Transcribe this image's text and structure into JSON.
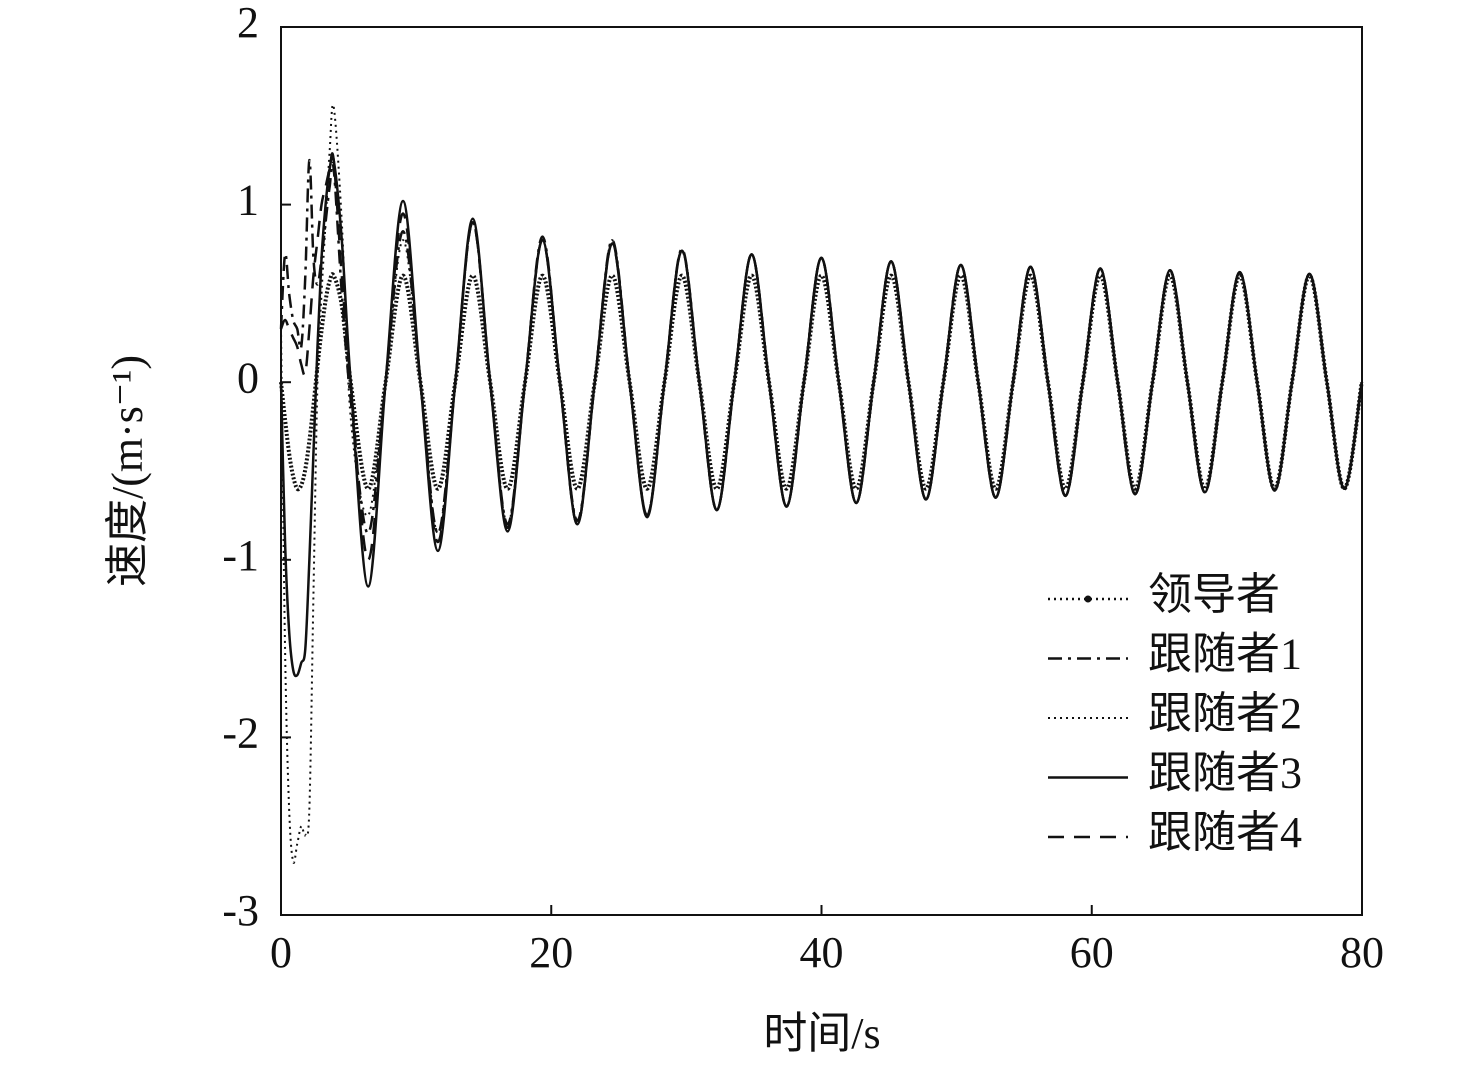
{
  "chart_data": {
    "type": "line",
    "xlabel": "时间/s",
    "ylabel": "速度/(m·s⁻¹)",
    "xlim": [
      0,
      80
    ],
    "ylim": [
      -3,
      2
    ],
    "xticks": [
      0,
      20,
      40,
      60,
      80
    ],
    "yticks": [
      -3,
      -2,
      -1,
      0,
      1,
      2
    ],
    "legend": "lower right",
    "smooth": true,
    "x": [
      0,
      0.3,
      0.6,
      0.9,
      1.2,
      1.5,
      1.8,
      2.1,
      2.4,
      2.7,
      3,
      3.3,
      3.6,
      3.9,
      4.5,
      5.16,
      6.45,
      7.74,
      9.03,
      10.32,
      11.61,
      12.9,
      14.19,
      15.48,
      16.77,
      18.06,
      19.35,
      20.64,
      21.93,
      23.22,
      24.51,
      25.8,
      27.09,
      28.38,
      29.67,
      30.96,
      32.25,
      33.54,
      34.83,
      36.12,
      37.41,
      38.7,
      39.99,
      41.28,
      42.57,
      43.86,
      45.15,
      46.44,
      47.73,
      49.02,
      50.31,
      51.6,
      52.89,
      54.18,
      55.47,
      56.76,
      58.05,
      59.34,
      60.63,
      61.92,
      63.21,
      64.5,
      65.79,
      67.08,
      68.37,
      69.66,
      70.95,
      72.24,
      73.53,
      74.82,
      76.11,
      77.4,
      78.69,
      79.98
    ],
    "series": [
      {
        "name": "领导者",
        "color": "#111111",
        "style": "dotmarker",
        "values": [
          0,
          -0.21,
          -0.4,
          -0.53,
          -0.6,
          -0.58,
          -0.49,
          -0.33,
          -0.13,
          0.09,
          0.29,
          0.46,
          0.57,
          0.6,
          0.43,
          0,
          -0.6,
          0,
          0.6,
          0,
          -0.6,
          0,
          0.6,
          0,
          -0.6,
          0,
          0.6,
          0,
          -0.6,
          0,
          0.6,
          0,
          -0.6,
          0,
          0.6,
          0,
          -0.6,
          0,
          0.6,
          0,
          -0.6,
          0,
          0.6,
          0,
          -0.6,
          0,
          0.6,
          0,
          -0.6,
          0,
          0.6,
          0,
          -0.6,
          0,
          0.6,
          0,
          -0.6,
          0,
          0.6,
          0,
          -0.6,
          0,
          0.6,
          0,
          -0.6,
          0,
          0.6,
          0,
          -0.6,
          0,
          0.6,
          0,
          -0.6,
          0
        ]
      },
      {
        "name": "跟随者1",
        "color": "#111111",
        "style": "dashdot",
        "values": [
          0.3,
          0.72,
          0.5,
          0.35,
          0.3,
          0.2,
          0.6,
          1.25,
          0.7,
          0.55,
          0.7,
          0.9,
          1.1,
          1.2,
          0.5,
          -0.1,
          -0.85,
          0,
          0.85,
          0,
          -0.85,
          0,
          0.9,
          0,
          -0.8,
          0,
          0.82,
          0,
          -0.78,
          0,
          0.8,
          0,
          -0.75,
          0,
          0.75,
          0,
          -0.72,
          0,
          0.72,
          0,
          -0.7,
          0,
          0.7,
          0,
          -0.68,
          0,
          0.68,
          0,
          -0.66,
          0,
          0.66,
          0,
          -0.65,
          0,
          0.65,
          0,
          -0.64,
          0,
          0.64,
          0,
          -0.63,
          0,
          0.63,
          0,
          -0.62,
          0,
          0.62,
          0,
          -0.61,
          0,
          0.61,
          0,
          -0.6,
          0
        ]
      },
      {
        "name": "跟随者2",
        "color": "#111111",
        "style": "dot",
        "values": [
          0.3,
          -1.5,
          -2.4,
          -2.7,
          -2.6,
          -2.5,
          -2.55,
          -2.4,
          -1.2,
          0,
          0.5,
          0.9,
          1.3,
          1.55,
          0.9,
          -0.2,
          -0.75,
          0,
          0.8,
          0,
          -0.85,
          0,
          0.9,
          0,
          -0.8,
          0,
          0.8,
          0,
          -0.78,
          0,
          0.8,
          0,
          -0.76,
          0,
          0.74,
          0,
          -0.72,
          0,
          0.72,
          0,
          -0.7,
          0,
          0.7,
          0,
          -0.68,
          0,
          0.68,
          0,
          -0.66,
          0,
          0.66,
          0,
          -0.65,
          0,
          0.65,
          0,
          -0.64,
          0,
          0.64,
          0,
          -0.63,
          0,
          0.63,
          0,
          -0.62,
          0,
          0.62,
          0,
          -0.61,
          0,
          0.61,
          0,
          -0.6,
          0
        ]
      },
      {
        "name": "跟随者3",
        "color": "#111111",
        "style": "solid",
        "values": [
          0,
          -0.9,
          -1.4,
          -1.62,
          -1.65,
          -1.58,
          -1.5,
          -1,
          -0.4,
          0.2,
          0.7,
          1,
          1.2,
          1.25,
          0.8,
          0,
          -1.15,
          0,
          1.02,
          0,
          -0.95,
          0,
          0.92,
          0,
          -0.84,
          0,
          0.8,
          0,
          -0.8,
          0,
          0.78,
          0,
          -0.76,
          0,
          0.74,
          0,
          -0.72,
          0,
          0.72,
          0,
          -0.7,
          0,
          0.7,
          0,
          -0.68,
          0,
          0.68,
          0,
          -0.66,
          0,
          0.66,
          0,
          -0.65,
          0,
          0.65,
          0,
          -0.64,
          0,
          0.64,
          0,
          -0.63,
          0,
          0.63,
          0,
          -0.62,
          0,
          0.62,
          0,
          -0.61,
          0,
          0.61,
          0,
          -0.6,
          0
        ]
      },
      {
        "name": "跟随者4",
        "color": "#111111",
        "style": "dash",
        "values": [
          0.3,
          0.35,
          0.3,
          0.25,
          0.2,
          0.1,
          0.05,
          0.3,
          0.6,
          0.8,
          1,
          1.1,
          1.2,
          1.25,
          0.6,
          0,
          -1,
          0,
          0.95,
          0,
          -0.9,
          0,
          0.9,
          0,
          -0.82,
          0,
          0.8,
          0,
          -0.8,
          0,
          0.78,
          0,
          -0.75,
          0,
          0.74,
          0,
          -0.72,
          0,
          0.72,
          0,
          -0.7,
          0,
          0.7,
          0,
          -0.68,
          0,
          0.68,
          0,
          -0.66,
          0,
          0.66,
          0,
          -0.65,
          0,
          0.65,
          0,
          -0.64,
          0,
          0.64,
          0,
          -0.63,
          0,
          0.63,
          0,
          -0.62,
          0,
          0.62,
          0,
          -0.61,
          0,
          0.61,
          0,
          -0.6,
          0
        ]
      }
    ]
  }
}
